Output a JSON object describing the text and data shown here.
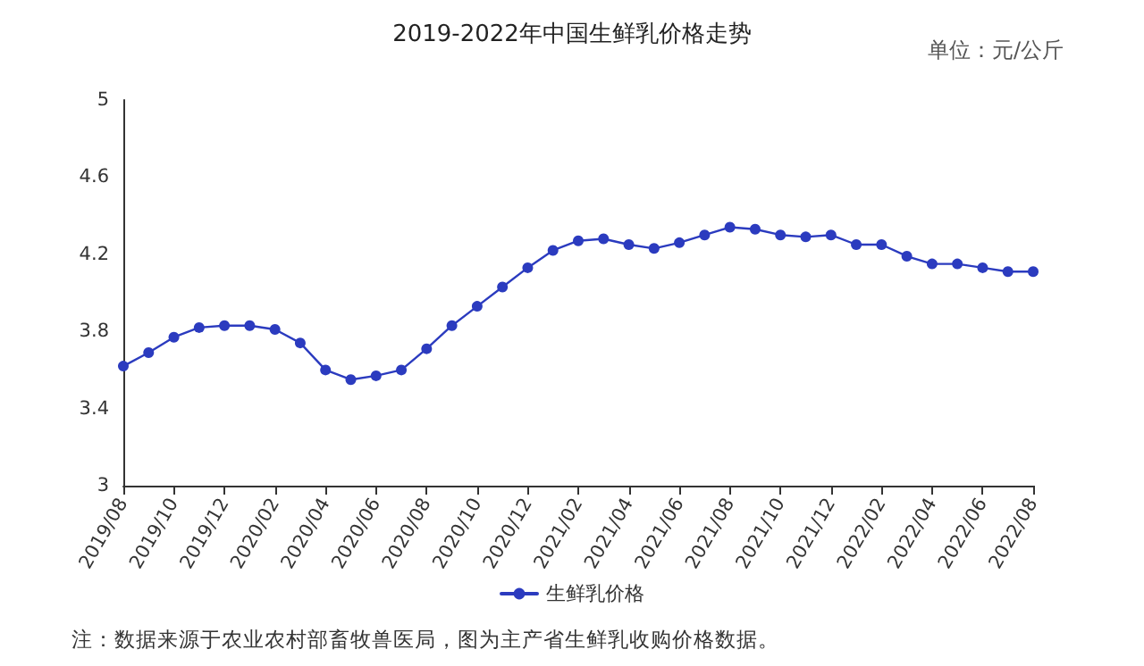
{
  "chart_data": {
    "type": "line",
    "title": "2019-2022年中国生鲜乳价格走势",
    "categories": [
      "2019/08",
      null,
      "2019/10",
      null,
      "2019/12",
      null,
      "2020/02",
      null,
      "2020/04",
      null,
      "2020/06",
      null,
      "2020/08",
      null,
      "2020/10",
      null,
      "2020/12",
      null,
      "2021/02",
      null,
      "2021/04",
      null,
      "2021/06",
      null,
      "2021/08",
      null,
      "2021/10",
      null,
      "2021/12",
      null,
      "2022/02",
      null,
      "2022/04",
      null,
      "2022/06",
      null,
      "2022/08"
    ],
    "series": [
      {
        "name": "生鲜乳价格",
        "color": "#2b3bbf",
        "values": [
          3.62,
          3.69,
          3.77,
          3.82,
          3.83,
          3.83,
          3.81,
          3.74,
          3.6,
          3.55,
          3.57,
          3.6,
          3.71,
          3.83,
          3.93,
          4.03,
          4.13,
          4.22,
          4.27,
          4.28,
          4.25,
          4.23,
          4.26,
          4.3,
          4.34,
          4.33,
          4.3,
          4.29,
          4.3,
          4.25,
          4.25,
          4.19,
          4.15,
          4.15,
          4.13,
          4.11,
          4.11
        ]
      }
    ],
    "ylim": [
      3,
      5
    ],
    "yticks": [
      3,
      3.4,
      3.8,
      4.2,
      4.6,
      5
    ],
    "grid": false,
    "legend": "bottom",
    "marker": "circle",
    "line_style": "solid",
    "annotations": [
      "单位：元/公斤",
      "注：数据来源于农业农村部畜牧兽医局，图为主产省生鲜乳收购价格数据。"
    ]
  }
}
